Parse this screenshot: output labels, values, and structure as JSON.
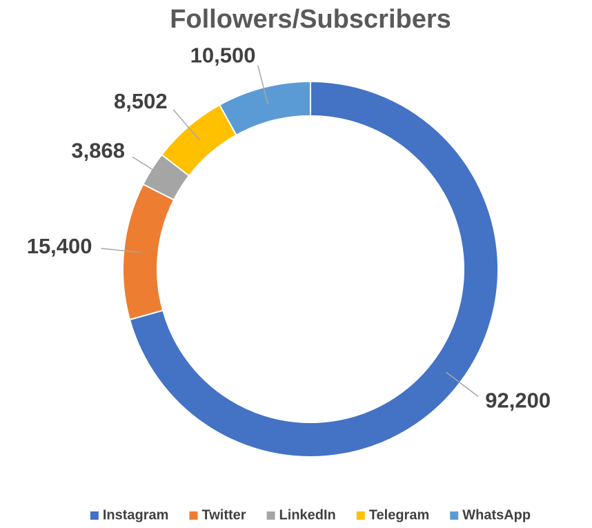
{
  "chart_data": {
    "type": "donut",
    "title": "Followers/Subscribers",
    "categories": [
      "Instagram",
      "Twitter",
      "LinkedIn",
      "Telegram",
      "WhatsApp"
    ],
    "values": [
      92200,
      15400,
      3868,
      8502,
      10500
    ],
    "value_labels": [
      "92,200",
      "15,400",
      "3,868",
      "8,502",
      "10,500"
    ],
    "colors": [
      "#4472c4",
      "#ed7d31",
      "#a5a5a5",
      "#ffc000",
      "#5b9bd5"
    ],
    "legend": "bottom"
  }
}
